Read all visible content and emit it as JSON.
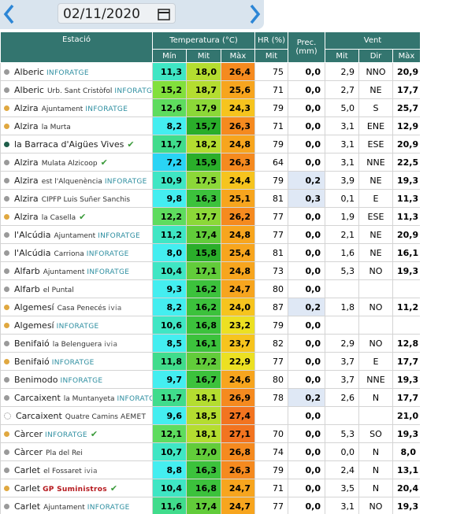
{
  "toolbar": {
    "date": "02/11/2020"
  },
  "table": {
    "headers": {
      "station": "Estació",
      "temperature": "Temperatura (°C)",
      "humidity": "HR (%)",
      "precipitation": "Prec. (mm)",
      "wind": "Vent",
      "sub": [
        "Mín",
        "Mit",
        "Màx",
        "Mit",
        "Mit",
        "Dir",
        "Màx"
      ]
    },
    "rows": [
      {
        "town": "Alberic",
        "place": "",
        "source": "INFORATGE",
        "check": false,
        "dot": "#9a9a9a",
        "values": [
          "11,3",
          "18,0",
          "26,4",
          "75",
          "0,0",
          "2,9",
          "NNO",
          "20,9"
        ]
      },
      {
        "town": "Alberic",
        "place": "Urb. Sant Cristòfol",
        "source": "INFORATGE",
        "check": false,
        "dot": "#9a9a9a",
        "values": [
          "15,2",
          "18,7",
          "25,6",
          "71",
          "0,0",
          "2,7",
          "NE",
          "17,7"
        ]
      },
      {
        "town": "Alzira",
        "place": "Ajuntament",
        "source": "INFORATGE",
        "check": false,
        "dot": "#e0a840",
        "values": [
          "12,6",
          "17,9",
          "24,3",
          "79",
          "0,0",
          "5,0",
          "S",
          "25,7"
        ]
      },
      {
        "town": "Alzira",
        "place": "la Murta",
        "source": "",
        "check": false,
        "dot": "#e0a840",
        "values": [
          "8,2",
          "15,7",
          "26,3",
          "71",
          "0,0",
          "3,1",
          "ENE",
          "12,9"
        ]
      },
      {
        "town": "la Barraca d'Aigües Vives",
        "place": "",
        "source": "",
        "check": true,
        "dot": "#1f5e4a",
        "values": [
          "11,7",
          "18,2",
          "24,8",
          "79",
          "0,0",
          "3,1",
          "ESE",
          "20,9"
        ]
      },
      {
        "town": "Alzira",
        "place": "Mulata Alzicoop",
        "source": "",
        "check": true,
        "dot": "#9a9a9a",
        "values": [
          "7,2",
          "15,9",
          "26,3",
          "64",
          "0,0",
          "3,1",
          "NNE",
          "22,5"
        ]
      },
      {
        "town": "Alzira",
        "place": "est l'Alquenència",
        "source": "INFORATGE",
        "check": false,
        "dot": "#9a9a9a",
        "values": [
          "10,9",
          "17,5",
          "24,4",
          "79",
          "0,2",
          "3,9",
          "NE",
          "19,3"
        ]
      },
      {
        "town": "Alzira",
        "place": "CIPFP Luis Suñer Sanchis",
        "source": "",
        "check": false,
        "dot": "#9a9a9a",
        "values": [
          "9,8",
          "16,3",
          "25,1",
          "81",
          "0,3",
          "0,1",
          "E",
          "11,3"
        ]
      },
      {
        "town": "Alzira",
        "place": "la Casella",
        "source": "",
        "check": true,
        "dot": "#e0a840",
        "values": [
          "12,2",
          "17,7",
          "26,2",
          "77",
          "0,0",
          "1,9",
          "ESE",
          "11,3"
        ]
      },
      {
        "town": "l'Alcúdia",
        "place": "Ajuntament",
        "source": "INFORATGE",
        "check": false,
        "dot": "#9a9a9a",
        "values": [
          "11,2",
          "17,4",
          "24,8",
          "77",
          "0,0",
          "2,1",
          "NE",
          "20,9"
        ]
      },
      {
        "town": "l'Alcúdia",
        "place": "Carriona",
        "source": "INFORATGE",
        "check": false,
        "dot": "#9a9a9a",
        "values": [
          "8,0",
          "15,8",
          "25,4",
          "81",
          "0,0",
          "1,6",
          "NE",
          "16,1"
        ]
      },
      {
        "town": "Alfarb",
        "place": "Ajuntament",
        "source": "INFORATGE",
        "check": false,
        "dot": "#9a9a9a",
        "values": [
          "10,4",
          "17,1",
          "24,8",
          "73",
          "0,0",
          "5,3",
          "NO",
          "19,3"
        ]
      },
      {
        "town": "Alfarb",
        "place": "el Puntal",
        "source": "",
        "check": false,
        "dot": "#9a9a9a",
        "values": [
          "9,3",
          "16,2",
          "24,7",
          "80",
          "0,0",
          null,
          null,
          null
        ]
      },
      {
        "town": "Algemesí",
        "place": "Casa Penecés",
        "source": "ivia",
        "check": false,
        "dot": "#e0a840",
        "values": [
          "8,2",
          "16,2",
          "24,0",
          "87",
          "0,2",
          "1,8",
          "NO",
          "11,2"
        ]
      },
      {
        "town": "Algemesí",
        "place": "",
        "source": "INFORATGE",
        "check": false,
        "dot": "#e0a840",
        "values": [
          "10,6",
          "16,8",
          "23,2",
          "79",
          "0,0",
          null,
          null,
          null
        ]
      },
      {
        "town": "Benifaió",
        "place": "la Belenguera",
        "source": "ivia",
        "check": false,
        "dot": "#9a9a9a",
        "values": [
          "8,5",
          "16,1",
          "23,7",
          "82",
          "0,0",
          "2,9",
          "NO",
          "12,8"
        ]
      },
      {
        "town": "Benifaió",
        "place": "",
        "source": "INFORATGE",
        "check": false,
        "dot": "#e0a840",
        "values": [
          "11,8",
          "17,2",
          "22,9",
          "77",
          "0,0",
          "3,7",
          "E",
          "17,7"
        ]
      },
      {
        "town": "Benimodo",
        "place": "",
        "source": "INFORATGE",
        "check": false,
        "dot": "#9a9a9a",
        "values": [
          "9,7",
          "16,7",
          "24,6",
          "80",
          "0,0",
          "3,7",
          "NNE",
          "19,3"
        ]
      },
      {
        "town": "Carcaixent",
        "place": "la Muntanyeta",
        "source": "INFORATGE",
        "check": false,
        "dot": "#9a9a9a",
        "values": [
          "11,7",
          "18,1",
          "26,9",
          "78",
          "0,2",
          "2,6",
          "N",
          "17,7"
        ]
      },
      {
        "town": "Carcaixent",
        "place": "Quatre Camins",
        "source": "AEMET",
        "check": false,
        "dot": "none",
        "values": [
          "9,6",
          "18,5",
          "27,4",
          null,
          "0,0",
          null,
          null,
          "21,0"
        ]
      },
      {
        "town": "Càrcer",
        "place": "",
        "source": "INFORATGE",
        "check": true,
        "dot": "#e0a840",
        "values": [
          "12,1",
          "18,1",
          "27,1",
          "70",
          "0,0",
          "5,3",
          "SO",
          "19,3"
        ]
      },
      {
        "town": "Càrcer",
        "place": "Pla del Rei",
        "source": "",
        "check": false,
        "dot": "#9a9a9a",
        "values": [
          "10,7",
          "17,0",
          "26,8",
          "74",
          "0,0",
          "0,0",
          "N",
          "8,0"
        ]
      },
      {
        "town": "Carlet",
        "place": "el Fossaret",
        "source": "ivia",
        "check": false,
        "dot": "#9a9a9a",
        "values": [
          "8,8",
          "16,3",
          "26,3",
          "79",
          "0,0",
          "2,4",
          "N",
          "13,1"
        ]
      },
      {
        "town": "Carlet",
        "place": "",
        "source": "GP Suministros",
        "check": true,
        "dot": "#e0a840",
        "values": [
          "10,4",
          "16,8",
          "24,7",
          "71",
          "0,0",
          "3,5",
          "N",
          "20,4"
        ]
      },
      {
        "town": "Carlet",
        "place": "Ajuntament",
        "source": "INFORATGE",
        "check": false,
        "dot": "#9a9a9a",
        "values": [
          "11,6",
          "17,4",
          "24,7",
          "77",
          "0,0",
          "3,1",
          "NO",
          "19,3"
        ]
      }
    ]
  }
}
